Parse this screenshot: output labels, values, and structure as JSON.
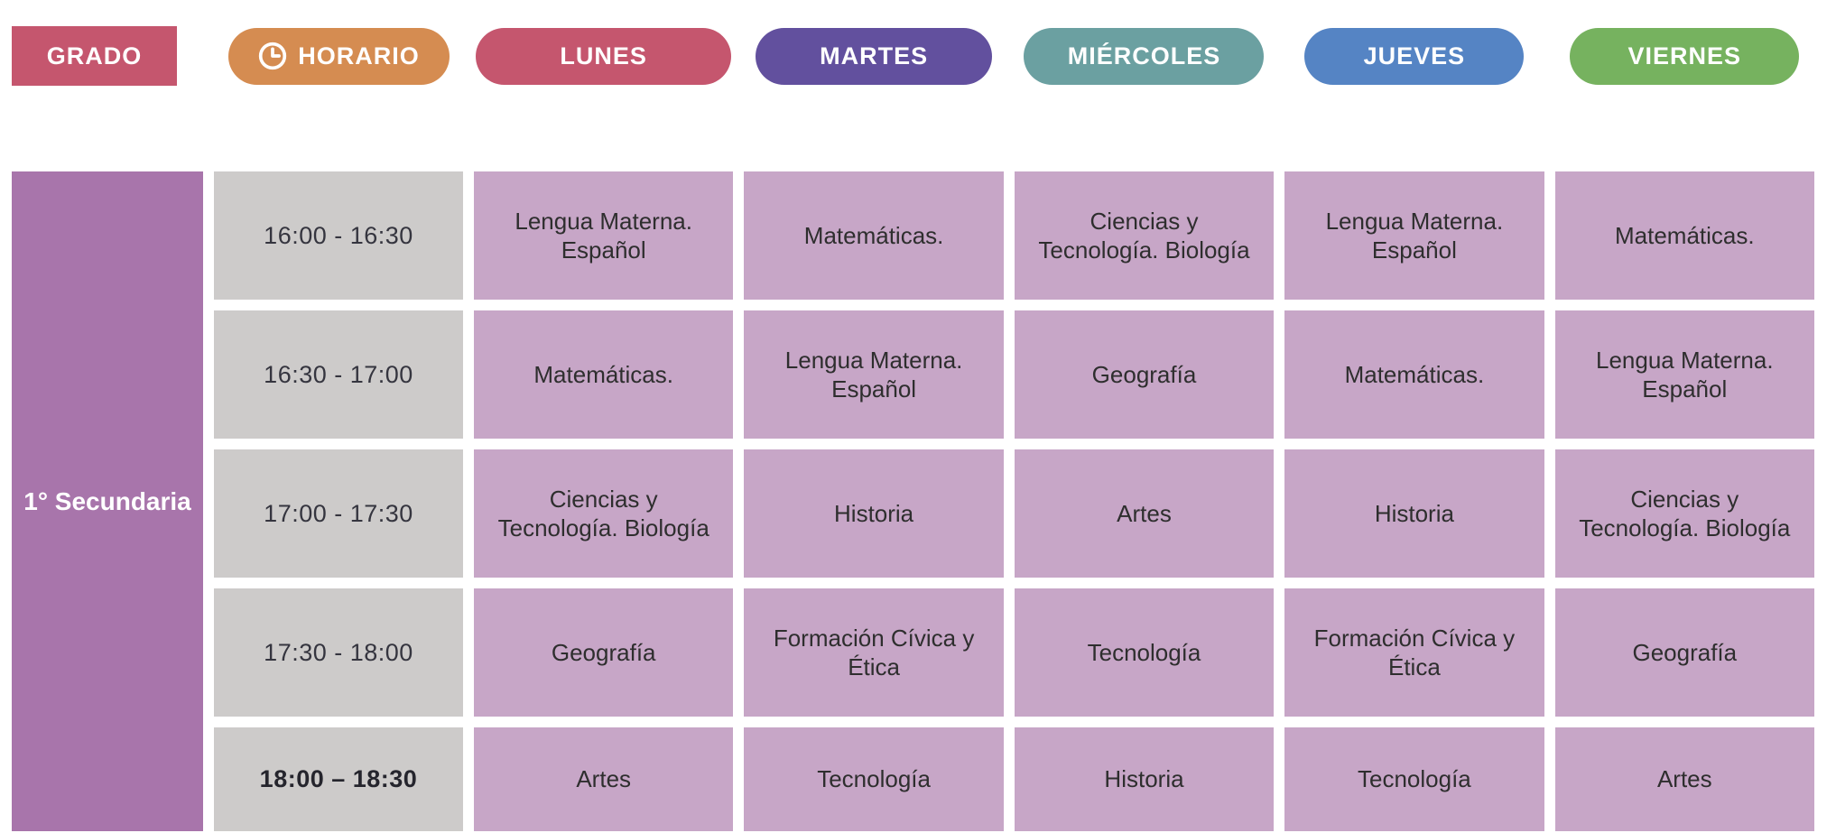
{
  "header": {
    "items": [
      {
        "id": "grado",
        "label": "GRADO",
        "color": "#c5566e",
        "shape": "rect"
      },
      {
        "id": "horario",
        "label": "HORARIO",
        "color": "#d58c51",
        "shape": "pill",
        "icon": "clock-icon"
      },
      {
        "id": "lunes",
        "label": "LUNES",
        "color": "#c5566e",
        "shape": "pill"
      },
      {
        "id": "martes",
        "label": "MARTES",
        "color": "#62509e",
        "shape": "pill"
      },
      {
        "id": "miercoles",
        "label": "MIÉRCOLES",
        "color": "#6ba0a1",
        "shape": "pill"
      },
      {
        "id": "jueves",
        "label": "JUEVES",
        "color": "#5584c4",
        "shape": "pill"
      },
      {
        "id": "viernes",
        "label": "VIERNES",
        "color": "#76b25f",
        "shape": "pill"
      }
    ]
  },
  "schedule": {
    "grade": "1° Secundaria",
    "colors": {
      "grade_bg": "#a875ab",
      "time_bg": "#cdcbca",
      "subject_bg": "#c7a6c7"
    },
    "rows": [
      {
        "time": "16:00 - 16:30",
        "bold": false,
        "subjects": [
          "Lengua Materna. Español",
          "Matemáticas.",
          "Ciencias y Tecnología. Biología",
          "Lengua Materna. Español",
          "Matemáticas."
        ]
      },
      {
        "time": "16:30 - 17:00",
        "bold": false,
        "subjects": [
          "Matemáticas.",
          "Lengua Materna. Español",
          "Geografía",
          "Matemáticas.",
          "Lengua Materna. Español"
        ]
      },
      {
        "time": "17:00 - 17:30",
        "bold": false,
        "subjects": [
          "Ciencias y Tecnología. Biología",
          "Historia",
          "Artes",
          "Historia",
          "Ciencias y Tecnología. Biología"
        ]
      },
      {
        "time": "17:30 - 18:00",
        "bold": false,
        "subjects": [
          "Geografía",
          "Formación Cívica y Ética",
          "Tecnología",
          "Formación Cívica y Ética",
          "Geografía"
        ]
      },
      {
        "time": "18:00 – 18:30",
        "bold": true,
        "subjects": [
          "Artes",
          "Tecnología",
          "Historia",
          "Tecnología",
          "Artes"
        ]
      }
    ]
  }
}
